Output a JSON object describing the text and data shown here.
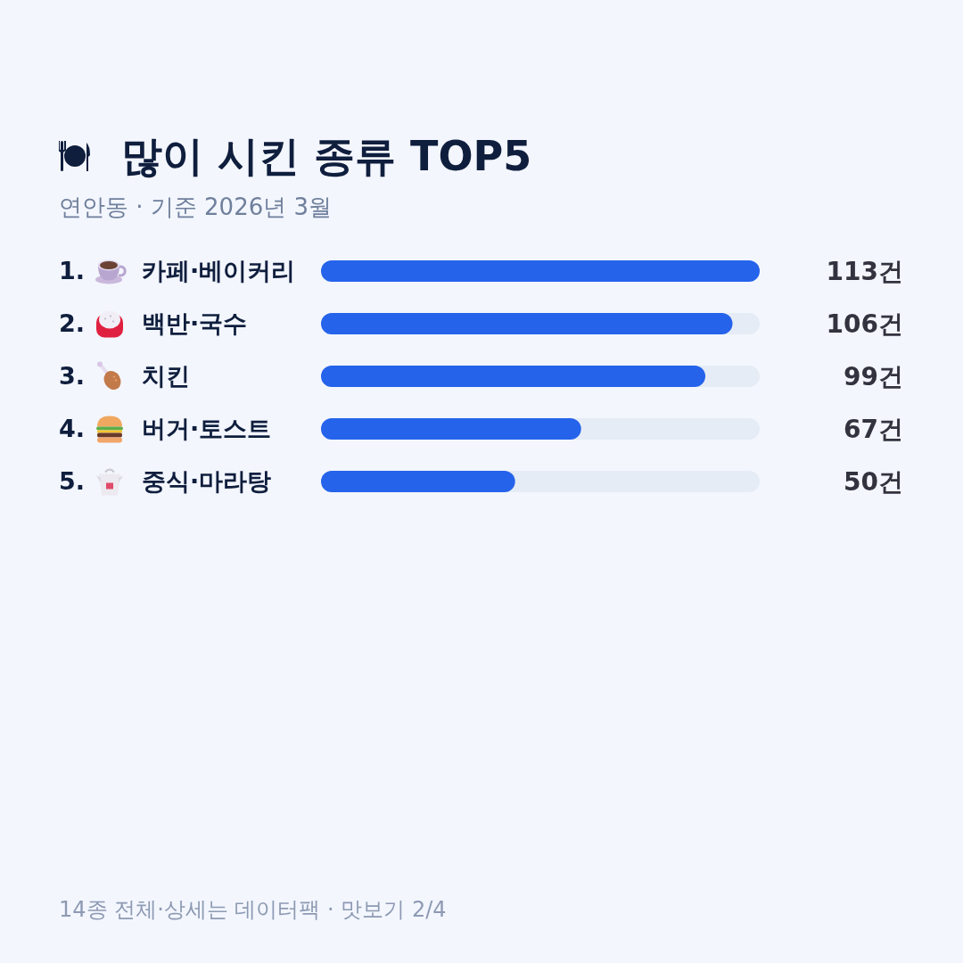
{
  "chart_data": {
    "type": "bar",
    "orientation": "horizontal",
    "title": "많이 시킨 종류 TOP5",
    "subtitle": "연안동 · 기준 2026년 3월",
    "categories": [
      "1. 카페·베이커리",
      "2. 백반·국수",
      "3. 치킨",
      "4. 버거·토스트",
      "5. 중식·마라탕"
    ],
    "values": [
      113,
      106,
      99,
      67,
      50
    ],
    "value_labels": [
      "113건",
      "106건",
      "99건",
      "67건",
      "50건"
    ],
    "color": "#2563eb",
    "annotations": [
      "14종 전체·상세는 데이터팩 · 맛보기 2/4"
    ]
  }
}
